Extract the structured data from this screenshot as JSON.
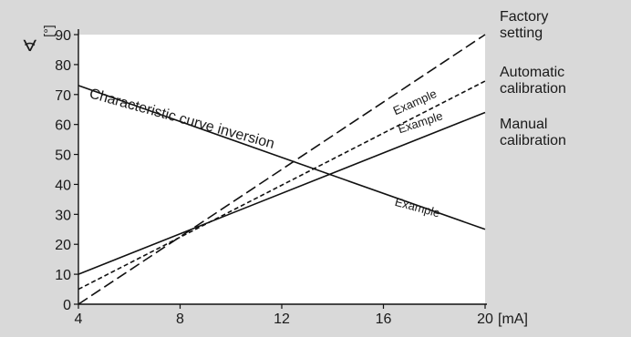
{
  "chart_data": {
    "type": "line",
    "xlabel": "[mA]",
    "ylabel_symbol": "∢",
    "ylabel_unit": "[°]",
    "xlim": [
      4,
      20
    ],
    "ylim": [
      0,
      90
    ],
    "x_ticks": [
      4,
      8,
      12,
      16,
      20
    ],
    "y_ticks": [
      0,
      10,
      20,
      30,
      40,
      50,
      60,
      70,
      80,
      90
    ],
    "grid": false,
    "background": "#ffffff",
    "outer_background": "#d9d9d9",
    "series": [
      {
        "name": "Factory setting",
        "legend": [
          "Factory",
          "setting"
        ],
        "style": "long-dash",
        "x": [
          4,
          20
        ],
        "y": [
          0,
          90
        ]
      },
      {
        "name": "Automatic calibration",
        "legend": [
          "Automatic",
          "calibration"
        ],
        "style": "short-dash",
        "x": [
          4,
          20
        ],
        "y": [
          5,
          74.5
        ]
      },
      {
        "name": "Manual calibration",
        "legend": [
          "Manual",
          "calibration"
        ],
        "style": "solid",
        "x": [
          4,
          20
        ],
        "y": [
          10,
          64
        ]
      },
      {
        "name": "Characteristic curve inversion",
        "style": "solid",
        "x": [
          4,
          20
        ],
        "y": [
          73,
          25
        ]
      }
    ],
    "annotations": [
      {
        "text": "Characteristic curve inversion",
        "x": 4.4,
        "y": 69,
        "angle": 15.5
      },
      {
        "text": "Example",
        "x": 17.3,
        "y": 66.2,
        "angle": -24
      },
      {
        "text": "Example",
        "x": 17.5,
        "y": 59.4,
        "angle": -18
      },
      {
        "text": "Example",
        "x": 17.3,
        "y": 31,
        "angle": 15
      }
    ]
  }
}
